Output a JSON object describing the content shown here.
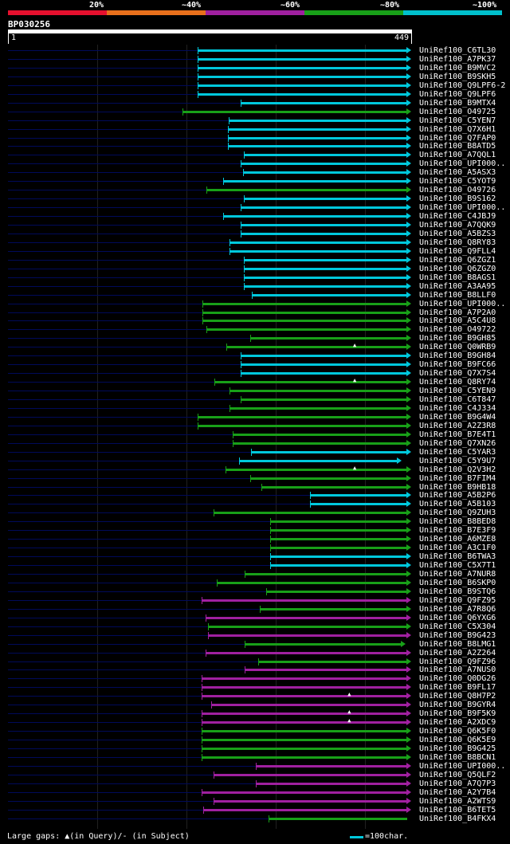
{
  "legend": {
    "labels": [
      "20%",
      "~40%",
      "~60%",
      "~80%",
      "~100%"
    ],
    "colors": [
      "#e6102e",
      "#e8701c",
      "#a020a0",
      "#18a018",
      "#00c0cc"
    ]
  },
  "query": {
    "title": "BP030256",
    "start_label": "1",
    "end_label": "449",
    "length": 449
  },
  "footer": {
    "gaps_text": "Large gaps: ▲(in Query)/- (in Subject)",
    "scale_text": "=100char."
  },
  "rows": [
    {
      "label": "UniRef100_C6TL30",
      "start": 214,
      "end": 449,
      "color": "cyan",
      "arrow": "right",
      "gap": null
    },
    {
      "label": "UniRef100_A7PK37",
      "start": 214,
      "end": 449,
      "color": "cyan",
      "arrow": "right",
      "gap": null
    },
    {
      "label": "UniRef100_B9MVC2",
      "start": 214,
      "end": 449,
      "color": "cyan",
      "arrow": "right",
      "gap": null
    },
    {
      "label": "UniRef100_B9SKH5",
      "start": 214,
      "end": 449,
      "color": "cyan",
      "arrow": "right",
      "gap": null
    },
    {
      "label": "UniRef100_Q9LPF6-2",
      "start": 214,
      "end": 449,
      "color": "cyan",
      "arrow": "right",
      "gap": null
    },
    {
      "label": "UniRef100_Q9LPF6",
      "start": 214,
      "end": 449,
      "color": "cyan",
      "arrow": "right",
      "gap": null
    },
    {
      "label": "UniRef100_B9MTX4",
      "start": 262,
      "end": 449,
      "color": "cyan",
      "arrow": "right",
      "gap": null
    },
    {
      "label": "UniRef100_O49725",
      "start": 197,
      "end": 449,
      "color": "green",
      "arrow": "right",
      "gap": null
    },
    {
      "label": "UniRef100_C5YEN7",
      "start": 249,
      "end": 449,
      "color": "cyan",
      "arrow": "right",
      "gap": null
    },
    {
      "label": "UniRef100_Q7X6H1",
      "start": 248,
      "end": 449,
      "color": "cyan",
      "arrow": "right",
      "gap": null
    },
    {
      "label": "UniRef100_Q7FAP0",
      "start": 248,
      "end": 449,
      "color": "cyan",
      "arrow": "right",
      "gap": null
    },
    {
      "label": "UniRef100_B8ATD5",
      "start": 248,
      "end": 449,
      "color": "cyan",
      "arrow": "right",
      "gap": null
    },
    {
      "label": "UniRef100_A7QQL1",
      "start": 266,
      "end": 449,
      "color": "cyan",
      "arrow": "right",
      "gap": null
    },
    {
      "label": "UniRef100_UPI000..",
      "start": 262,
      "end": 449,
      "color": "cyan",
      "arrow": "right",
      "gap": null
    },
    {
      "label": "UniRef100_A5ASX3",
      "start": 265,
      "end": 449,
      "color": "cyan",
      "arrow": "right",
      "gap": null
    },
    {
      "label": "UniRef100_C5YOT9",
      "start": 242,
      "end": 449,
      "color": "cyan",
      "arrow": "right",
      "gap": null
    },
    {
      "label": "UniRef100_O49726",
      "start": 224,
      "end": 449,
      "color": "green",
      "arrow": "right",
      "gap": null
    },
    {
      "label": "UniRef100_B9S162",
      "start": 266,
      "end": 449,
      "color": "cyan",
      "arrow": "right",
      "gap": null
    },
    {
      "label": "UniRef100_UPI000..",
      "start": 262,
      "end": 449,
      "color": "cyan",
      "arrow": "right",
      "gap": null
    },
    {
      "label": "UniRef100_C4JBJ9",
      "start": 242,
      "end": 449,
      "color": "cyan",
      "arrow": "right",
      "gap": null
    },
    {
      "label": "UniRef100_A7QQK9",
      "start": 262,
      "end": 449,
      "color": "cyan",
      "arrow": "right",
      "gap": null
    },
    {
      "label": "UniRef100_A5BZS3",
      "start": 262,
      "end": 449,
      "color": "cyan",
      "arrow": "right",
      "gap": null
    },
    {
      "label": "UniRef100_Q8RY83",
      "start": 250,
      "end": 449,
      "color": "cyan",
      "arrow": "right",
      "gap": null
    },
    {
      "label": "UniRef100_Q9FLL4",
      "start": 250,
      "end": 449,
      "color": "cyan",
      "arrow": "right",
      "gap": null
    },
    {
      "label": "UniRef100_Q6ZGZ1",
      "start": 266,
      "end": 449,
      "color": "cyan",
      "arrow": "right",
      "gap": null
    },
    {
      "label": "UniRef100_Q6ZGZ0",
      "start": 266,
      "end": 449,
      "color": "cyan",
      "arrow": "right",
      "gap": null
    },
    {
      "label": "UniRef100_B8AGS1",
      "start": 266,
      "end": 449,
      "color": "cyan",
      "arrow": "right",
      "gap": null
    },
    {
      "label": "UniRef100_A3AA95",
      "start": 266,
      "end": 449,
      "color": "cyan",
      "arrow": "right",
      "gap": null
    },
    {
      "label": "UniRef100_B8LLF0",
      "start": 275,
      "end": 449,
      "color": "cyan",
      "arrow": "right",
      "gap": null
    },
    {
      "label": "UniRef100_UPI000..",
      "start": 219,
      "end": 449,
      "color": "green",
      "arrow": "right",
      "gap": null
    },
    {
      "label": "UniRef100_A7P2A0",
      "start": 219,
      "end": 449,
      "color": "green",
      "arrow": "right",
      "gap": null
    },
    {
      "label": "UniRef100_A5C4U8",
      "start": 219,
      "end": 449,
      "color": "green",
      "arrow": "right",
      "gap": null
    },
    {
      "label": "UniRef100_O49722",
      "start": 224,
      "end": 449,
      "color": "green",
      "arrow": "right",
      "gap": null
    },
    {
      "label": "UniRef100_B9GH85",
      "start": 273,
      "end": 449,
      "color": "green",
      "arrow": "right",
      "gap": null
    },
    {
      "label": "UniRef100_Q0WRB9",
      "start": 246,
      "end": 449,
      "color": "green",
      "arrow": "right",
      "gap": 390
    },
    {
      "label": "UniRef100_B9GH84",
      "start": 262,
      "end": 449,
      "color": "cyan",
      "arrow": "right",
      "gap": null
    },
    {
      "label": "UniRef100_B9FC66",
      "start": 262,
      "end": 449,
      "color": "cyan",
      "arrow": "right",
      "gap": null
    },
    {
      "label": "UniRef100_Q7X7S4",
      "start": 262,
      "end": 449,
      "color": "cyan",
      "arrow": "right",
      "gap": null
    },
    {
      "label": "UniRef100_Q8RY74",
      "start": 233,
      "end": 449,
      "color": "green",
      "arrow": "right",
      "gap": 390
    },
    {
      "label": "UniRef100_C5YEN9",
      "start": 250,
      "end": 449,
      "color": "green",
      "arrow": "right",
      "gap": null
    },
    {
      "label": "UniRef100_C6T847",
      "start": 262,
      "end": 449,
      "color": "green",
      "arrow": "right",
      "gap": null
    },
    {
      "label": "UniRef100_C4J334",
      "start": 250,
      "end": 449,
      "color": "green",
      "arrow": "right",
      "gap": null
    },
    {
      "label": "UniRef100_B9G4W4",
      "start": 214,
      "end": 449,
      "color": "green",
      "arrow": "right",
      "gap": null
    },
    {
      "label": "UniRef100_A2Z3R8",
      "start": 214,
      "end": 449,
      "color": "green",
      "arrow": "right",
      "gap": null
    },
    {
      "label": "UniRef100_B7E4T1",
      "start": 253,
      "end": 449,
      "color": "green",
      "arrow": "right",
      "gap": null
    },
    {
      "label": "UniRef100_Q7XN26",
      "start": 253,
      "end": 449,
      "color": "green",
      "arrow": "right",
      "gap": null
    },
    {
      "label": "UniRef100_C5YAR3",
      "start": 274,
      "end": 449,
      "color": "cyan",
      "arrow": "right",
      "gap": null
    },
    {
      "label": "UniRef100_C5Y9U7",
      "start": 260,
      "end": 438,
      "color": "cyan",
      "arrow": "right",
      "gap": null
    },
    {
      "label": "UniRef100_Q2V3H2",
      "start": 245,
      "end": 449,
      "color": "green",
      "arrow": "right",
      "gap": 390
    },
    {
      "label": "UniRef100_B7FIM4",
      "start": 273,
      "end": 449,
      "color": "green",
      "arrow": "right",
      "gap": null
    },
    {
      "label": "UniRef100_B9HB18",
      "start": 285,
      "end": 449,
      "color": "green",
      "arrow": "right",
      "gap": null
    },
    {
      "label": "UniRef100_A5B2P6",
      "start": 340,
      "end": 449,
      "color": "cyan",
      "arrow": "right",
      "gap": null
    },
    {
      "label": "UniRef100_A5B103",
      "start": 340,
      "end": 449,
      "color": "cyan",
      "arrow": "right",
      "gap": null
    },
    {
      "label": "UniRef100_Q9ZUH3",
      "start": 232,
      "end": 449,
      "color": "green",
      "arrow": "right",
      "gap": null
    },
    {
      "label": "UniRef100_B8BED8",
      "start": 295,
      "end": 449,
      "color": "green",
      "arrow": "right",
      "gap": null
    },
    {
      "label": "UniRef100_B7E3F9",
      "start": 295,
      "end": 449,
      "color": "green",
      "arrow": "right",
      "gap": null
    },
    {
      "label": "UniRef100_A6MZE8",
      "start": 295,
      "end": 449,
      "color": "green",
      "arrow": "right",
      "gap": null
    },
    {
      "label": "UniRef100_A3C1F0",
      "start": 295,
      "end": 449,
      "color": "green",
      "arrow": "right",
      "gap": null
    },
    {
      "label": "UniRef100_B6TWA3",
      "start": 295,
      "end": 449,
      "color": "cyan",
      "arrow": "right",
      "gap": null
    },
    {
      "label": "UniRef100_C5X7T1",
      "start": 295,
      "end": 449,
      "color": "cyan",
      "arrow": "right",
      "gap": null
    },
    {
      "label": "UniRef100_A7NUR8",
      "start": 267,
      "end": 449,
      "color": "green",
      "arrow": "right",
      "gap": null
    },
    {
      "label": "UniRef100_B6SKP0",
      "start": 235,
      "end": 449,
      "color": "green",
      "arrow": "right",
      "gap": null
    },
    {
      "label": "UniRef100_B9STQ6",
      "start": 291,
      "end": 449,
      "color": "green",
      "arrow": "right",
      "gap": null
    },
    {
      "label": "UniRef100_Q9FZ95",
      "start": 218,
      "end": 449,
      "color": "magenta",
      "arrow": "right",
      "gap": null
    },
    {
      "label": "UniRef100_A7R8Q6",
      "start": 284,
      "end": 449,
      "color": "green",
      "arrow": "right",
      "gap": null
    },
    {
      "label": "UniRef100_Q6YXG6",
      "start": 223,
      "end": 449,
      "color": "magenta",
      "arrow": "right",
      "gap": null
    },
    {
      "label": "UniRef100_C5X304",
      "start": 225,
      "end": 449,
      "color": "green",
      "arrow": "right",
      "gap": null
    },
    {
      "label": "UniRef100_B9G423",
      "start": 225,
      "end": 449,
      "color": "magenta",
      "arrow": "right",
      "gap": null
    },
    {
      "label": "UniRef100_B8LMG1",
      "start": 267,
      "end": 443,
      "color": "green",
      "arrow": "right",
      "gap": null
    },
    {
      "label": "UniRef100_A2Z264",
      "start": 223,
      "end": 449,
      "color": "magenta",
      "arrow": "right",
      "gap": null
    },
    {
      "label": "UniRef100_Q9FZ96",
      "start": 282,
      "end": 449,
      "color": "green",
      "arrow": "right",
      "gap": null
    },
    {
      "label": "UniRef100_A7NUS0",
      "start": 267,
      "end": 449,
      "color": "magenta",
      "arrow": "right",
      "gap": null
    },
    {
      "label": "UniRef100_Q0DG26",
      "start": 218,
      "end": 449,
      "color": "magenta",
      "arrow": "right",
      "gap": null
    },
    {
      "label": "UniRef100_B9FL17",
      "start": 218,
      "end": 449,
      "color": "magenta",
      "arrow": "right",
      "gap": null
    },
    {
      "label": "UniRef100_Q8H7P2",
      "start": 218,
      "end": 449,
      "color": "magenta",
      "arrow": "right",
      "gap": 384
    },
    {
      "label": "UniRef100_B9GYR4",
      "start": 229,
      "end": 449,
      "color": "magenta",
      "arrow": "right",
      "gap": null
    },
    {
      "label": "UniRef100_B9F5K9",
      "start": 218,
      "end": 449,
      "color": "magenta",
      "arrow": "right",
      "gap": 384
    },
    {
      "label": "UniRef100_A2XDC9",
      "start": 218,
      "end": 449,
      "color": "magenta",
      "arrow": "right",
      "gap": 384
    },
    {
      "label": "UniRef100_Q6K5F0",
      "start": 218,
      "end": 449,
      "color": "green",
      "arrow": "right",
      "gap": null
    },
    {
      "label": "UniRef100_Q6K5E9",
      "start": 218,
      "end": 449,
      "color": "green",
      "arrow": "right",
      "gap": null
    },
    {
      "label": "UniRef100_B9G425",
      "start": 218,
      "end": 449,
      "color": "green",
      "arrow": "right",
      "gap": null
    },
    {
      "label": "UniRef100_B8BCN1",
      "start": 218,
      "end": 449,
      "color": "green",
      "arrow": "right",
      "gap": null
    },
    {
      "label": "UniRef100_UPI000..",
      "start": 279,
      "end": 449,
      "color": "magenta",
      "arrow": "right",
      "gap": null
    },
    {
      "label": "UniRef100_Q5QLF2",
      "start": 232,
      "end": 449,
      "color": "magenta",
      "arrow": "right",
      "gap": null
    },
    {
      "label": "UniRef100_A7Q7P3",
      "start": 279,
      "end": 449,
      "color": "magenta",
      "arrow": "right",
      "gap": null
    },
    {
      "label": "UniRef100_A2Y7B4",
      "start": 218,
      "end": 449,
      "color": "magenta",
      "arrow": "right",
      "gap": null
    },
    {
      "label": "UniRef100_A2WTS9",
      "start": 232,
      "end": 449,
      "color": "magenta",
      "arrow": "right",
      "gap": null
    },
    {
      "label": "UniRef100_B6TET5",
      "start": 220,
      "end": 449,
      "color": "magenta",
      "arrow": "right",
      "gap": null
    },
    {
      "label": "UniRef100_B4FKX4",
      "start": 293,
      "end": 449,
      "color": "green",
      "arrow": "none",
      "gap": null
    }
  ],
  "colors": {
    "cyan": "#00c8dc",
    "green": "#18a018",
    "magenta": "#a020a0",
    "base": "#000a5a"
  }
}
